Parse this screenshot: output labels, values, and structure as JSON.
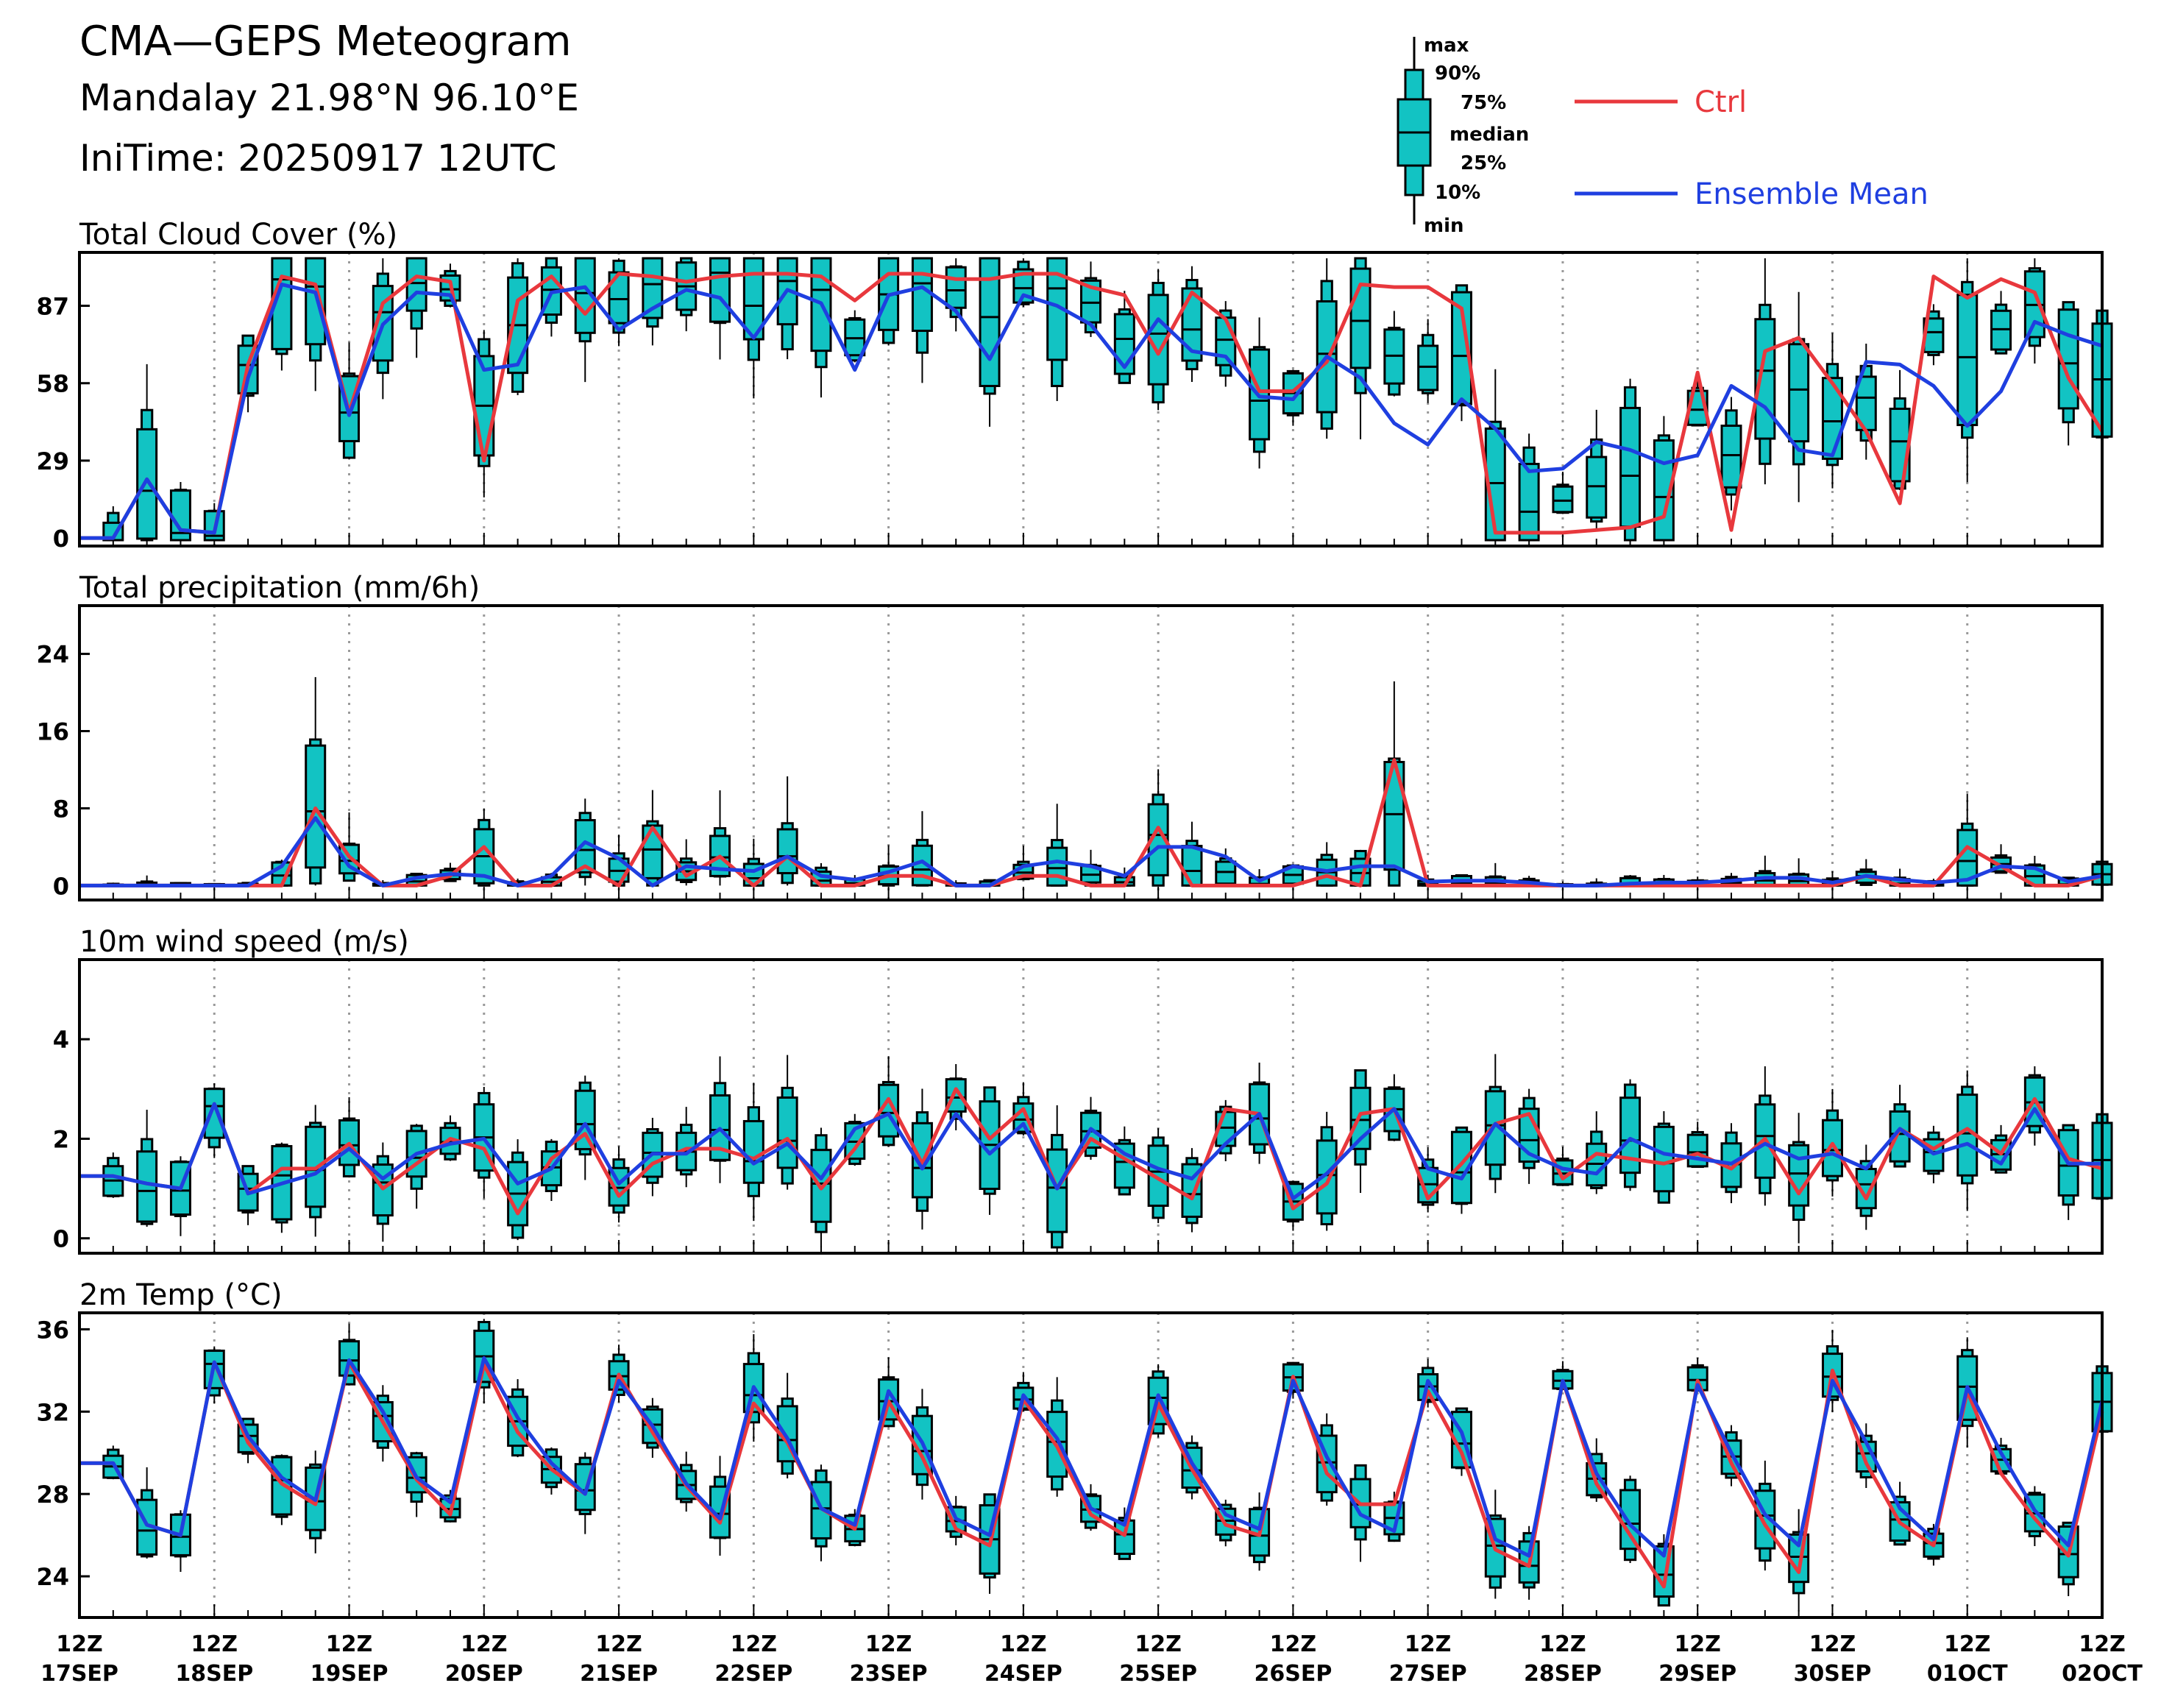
{
  "header": {
    "title": "CMA—GEPS Meteogram",
    "location": "Mandalay 21.98°N 96.10°E",
    "init_time": "IniTime: 20250917 12UTC"
  },
  "legend": {
    "box_labels": [
      "max",
      "90%",
      "75%",
      "median",
      "25%",
      "10%",
      "min"
    ],
    "ctrl_label": "Ctrl",
    "mean_label": "Ensemble Mean",
    "colors": {
      "ctrl": "#e8383d",
      "mean": "#1f3fe0",
      "box_fill": "#12c3c3",
      "box_edge": "#000000"
    }
  },
  "x_axis": {
    "top_labels": [
      "12Z",
      "12Z",
      "12Z",
      "12Z",
      "12Z",
      "12Z",
      "12Z",
      "12Z",
      "12Z",
      "12Z",
      "12Z",
      "12Z",
      "12Z",
      "12Z",
      "12Z",
      "12Z"
    ],
    "bottom_labels": [
      "17SEP",
      "18SEP",
      "19SEP",
      "20SEP",
      "21SEP",
      "22SEP",
      "23SEP",
      "24SEP",
      "25SEP",
      "26SEP",
      "27SEP",
      "28SEP",
      "29SEP",
      "30SEP",
      "01OCT",
      "02OCT"
    ],
    "step_hours": 6,
    "n_steps": 60
  },
  "chart_data": [
    {
      "type": "box",
      "title": "Total Cloud Cover (%)",
      "ylim": [
        -3,
        107
      ],
      "yticks": [
        0,
        29,
        58,
        87
      ],
      "grid": "vertical dotted at 12Z",
      "ctrl": [
        0,
        22,
        3,
        2,
        65,
        98,
        95,
        47,
        88,
        98,
        96,
        29,
        89,
        98,
        84,
        99,
        98,
        96,
        98,
        99,
        99,
        98,
        89,
        99,
        99,
        97,
        97,
        99,
        99,
        94,
        91,
        69,
        92,
        82,
        55,
        55,
        66,
        95,
        94,
        94,
        86,
        2,
        2,
        2,
        3,
        4,
        8,
        62,
        3,
        70,
        75,
        58,
        40,
        13,
        98,
        90,
        97,
        92,
        60,
        40
      ],
      "mean": [
        0,
        22,
        3,
        2,
        60,
        95,
        92,
        46,
        80,
        92,
        91,
        63,
        65,
        92,
        94,
        78,
        86,
        93,
        90,
        75,
        93,
        88,
        63,
        91,
        94,
        85,
        67,
        91,
        87,
        80,
        64,
        82,
        70,
        68,
        53,
        52,
        68,
        60,
        43,
        35,
        52,
        41,
        25,
        26,
        36,
        33,
        28,
        31,
        57,
        49,
        33,
        31,
        66,
        65,
        57,
        42,
        55,
        81,
        76,
        72
      ]
    },
    {
      "type": "box",
      "title": "Total precipitation (mm/6h)",
      "ylim": [
        -1.5,
        29
      ],
      "yticks": [
        0,
        8,
        16,
        24
      ],
      "grid": "vertical dotted at 12Z",
      "ctrl": [
        0,
        0,
        0,
        0,
        0,
        0,
        8,
        3,
        0,
        0,
        1,
        4,
        0,
        0,
        2,
        0,
        6,
        1,
        3,
        0,
        3,
        0,
        0,
        1,
        1,
        0,
        0,
        1,
        1,
        0,
        0,
        6,
        0,
        0,
        0,
        0,
        1,
        0,
        13,
        0,
        0,
        0,
        0,
        0,
        0,
        0,
        0,
        0,
        0,
        0,
        0,
        0,
        1,
        0,
        0,
        4,
        2,
        0,
        0,
        1
      ],
      "mean": [
        0,
        0,
        0,
        0,
        0,
        2,
        7,
        2,
        0,
        0.8,
        1.2,
        1,
        0,
        1,
        4.5,
        2.8,
        0,
        2,
        1.7,
        1.5,
        3,
        1,
        0.6,
        1.4,
        2.5,
        0,
        0,
        2,
        2.5,
        2,
        1,
        4,
        4,
        3,
        0.5,
        2,
        1.5,
        2,
        2,
        0.4,
        0.5,
        0.5,
        0.3,
        0,
        0,
        0.2,
        0.3,
        0.3,
        0.5,
        0.8,
        0.8,
        0.3,
        1,
        0.6,
        0.3,
        0.6,
        2,
        1.8,
        0.4,
        1
      ]
    },
    {
      "type": "box",
      "title": "10m wind speed (m/s)",
      "ylim": [
        -0.3,
        5.6
      ],
      "yticks": [
        0,
        2,
        4
      ],
      "grid": "vertical dotted at 12Z",
      "ctrl": [
        1.25,
        1.1,
        1.0,
        2.7,
        0.9,
        1.4,
        1.4,
        1.9,
        1.0,
        1.5,
        2.0,
        1.8,
        0.5,
        1.6,
        2.1,
        0.85,
        1.5,
        1.8,
        1.8,
        1.6,
        2.0,
        1.0,
        1.8,
        2.8,
        1.5,
        3.0,
        2.0,
        2.6,
        1.0,
        2.0,
        1.6,
        1.2,
        0.8,
        2.6,
        2.5,
        0.6,
        1.1,
        2.5,
        2.6,
        0.8,
        1.5,
        2.3,
        2.5,
        1.2,
        1.7,
        1.6,
        1.5,
        1.7,
        1.4,
        2.0,
        0.9,
        1.9,
        0.8,
        2.2,
        1.8,
        2.2,
        1.7,
        2.8,
        1.6,
        1.4
      ],
      "mean": [
        1.25,
        1.1,
        1.0,
        2.7,
        0.9,
        1.1,
        1.3,
        1.8,
        1.2,
        1.7,
        1.9,
        2.0,
        1.1,
        1.4,
        2.3,
        1.1,
        1.7,
        1.7,
        2.2,
        1.5,
        1.9,
        1.2,
        2.2,
        2.5,
        1.4,
        2.5,
        1.7,
        2.3,
        1.0,
        2.2,
        1.7,
        1.4,
        1.2,
        1.9,
        2.5,
        0.8,
        1.3,
        2.0,
        2.6,
        1.4,
        1.2,
        2.3,
        1.7,
        1.4,
        1.3,
        2.0,
        1.7,
        1.6,
        1.5,
        1.9,
        1.6,
        1.7,
        1.4,
        2.2,
        1.7,
        1.9,
        1.5,
        2.6,
        1.5,
        1.5
      ]
    },
    {
      "type": "box",
      "title": "2m Temp (°C)",
      "ylim": [
        22,
        36.8
      ],
      "yticks": [
        24,
        28,
        32,
        36
      ],
      "grid": "vertical dotted at 12Z",
      "ctrl": [
        29.5,
        26.5,
        26.0,
        34.4,
        30.5,
        28.5,
        27.5,
        34.4,
        31.5,
        28.7,
        27.0,
        34.3,
        31.0,
        29.2,
        28.0,
        33.8,
        31.0,
        28.4,
        26.6,
        32.4,
        30.5,
        27.3,
        26.3,
        32.5,
        29.8,
        26.3,
        25.5,
        32.6,
        30.3,
        27.0,
        26.0,
        32.4,
        29.2,
        26.5,
        26.0,
        33.7,
        29.0,
        27.5,
        27.5,
        33.0,
        30.0,
        25.3,
        24.5,
        33.5,
        28.5,
        26.0,
        23.5,
        33.5,
        29.5,
        26.5,
        24.2,
        34.0,
        29.5,
        26.6,
        25.5,
        33.0,
        29.0,
        26.8,
        25.0,
        32.0
      ],
      "mean": [
        29.5,
        26.5,
        26.0,
        34.4,
        30.8,
        28.8,
        27.7,
        34.5,
        32.0,
        28.8,
        27.6,
        34.6,
        31.7,
        29.5,
        28.0,
        33.5,
        31.3,
        28.5,
        26.8,
        33.2,
        30.7,
        27.3,
        26.5,
        33.0,
        30.5,
        26.8,
        26.0,
        32.8,
        30.7,
        27.3,
        26.5,
        32.8,
        29.5,
        27.0,
        26.3,
        33.5,
        29.8,
        27.0,
        26.2,
        33.5,
        31.0,
        25.8,
        25.0,
        33.5,
        29.0,
        26.5,
        25.0,
        33.3,
        30.0,
        27.0,
        25.5,
        33.5,
        30.5,
        27.3,
        25.8,
        33.2,
        30.0,
        27.2,
        25.5,
        32.5
      ]
    }
  ]
}
